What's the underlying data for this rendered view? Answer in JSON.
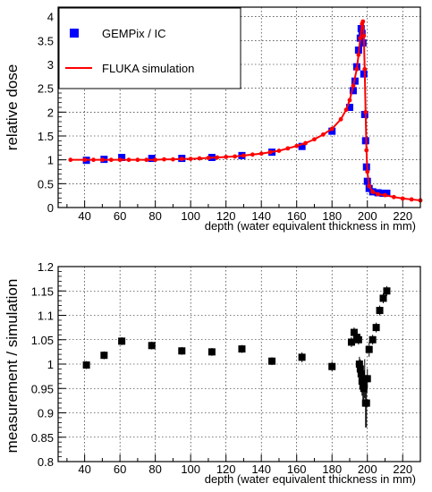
{
  "chart_data": [
    {
      "type": "line",
      "xlabel": "depth (water equivalent thickness in mm)",
      "ylabel": "relative dose",
      "xlim": [
        25,
        230
      ],
      "ylim": [
        0,
        4.2
      ],
      "xticks": [
        40,
        60,
        80,
        100,
        120,
        140,
        160,
        180,
        200,
        220
      ],
      "yticks": [
        0,
        0.5,
        1,
        1.5,
        2,
        2.5,
        3,
        3.5,
        4
      ],
      "ytick_labels": [
        "0",
        "0.5",
        "1",
        "1.5",
        "2",
        "2.5",
        "3",
        "3.5",
        "4"
      ],
      "grid": true,
      "legend": "top-left",
      "series": [
        {
          "name": "GEMPix / IC",
          "marker": "square",
          "color": "#0000ff",
          "x": [
            41,
            51,
            61,
            78,
            95,
            112,
            129,
            146,
            163,
            180,
            190,
            192,
            193,
            194,
            195,
            196,
            196.5,
            197,
            197.5,
            198,
            198.5,
            199,
            199.5,
            200,
            201,
            203,
            206,
            209,
            211
          ],
          "y": [
            0.99,
            1.01,
            1.05,
            1.03,
            1.03,
            1.05,
            1.09,
            1.16,
            1.28,
            1.6,
            2.1,
            2.45,
            2.65,
            2.95,
            3.3,
            3.55,
            3.75,
            3.65,
            3.45,
            2.8,
            1.95,
            1.4,
            0.85,
            0.55,
            0.4,
            0.33,
            0.31,
            0.3,
            0.3
          ]
        },
        {
          "name": "FLUKA simulation",
          "marker": "dot",
          "color": "#ff0000",
          "x": [
            32,
            40,
            45,
            50,
            55,
            60,
            65,
            70,
            75,
            80,
            85,
            90,
            95,
            100,
            105,
            110,
            115,
            120,
            125,
            130,
            135,
            140,
            145,
            150,
            155,
            160,
            165,
            170,
            175,
            180,
            185,
            188,
            190,
            192,
            194,
            195,
            196,
            197,
            197.5,
            198,
            198.5,
            199,
            199.5,
            200,
            201,
            203,
            206,
            210,
            215,
            220,
            225,
            230
          ],
          "y": [
            1.0,
            1.0,
            1.0,
            1.0,
            1.0,
            1.0,
            1.0,
            1.0,
            1.0,
            1.0,
            1.01,
            1.01,
            1.02,
            1.02,
            1.03,
            1.04,
            1.05,
            1.06,
            1.07,
            1.09,
            1.11,
            1.13,
            1.16,
            1.19,
            1.24,
            1.29,
            1.35,
            1.43,
            1.53,
            1.65,
            1.85,
            2.05,
            2.25,
            2.55,
            2.9,
            3.2,
            3.55,
            3.85,
            3.9,
            3.6,
            2.9,
            2.0,
            1.2,
            0.75,
            0.45,
            0.33,
            0.28,
            0.26,
            0.22,
            0.19,
            0.17,
            0.15
          ]
        }
      ]
    },
    {
      "type": "scatter",
      "xlabel": "depth (water equivalent thickness in mm)",
      "ylabel": "measurement / simulation",
      "xlim": [
        25,
        230
      ],
      "ylim": [
        0.8,
        1.2
      ],
      "xticks": [
        40,
        60,
        80,
        100,
        120,
        140,
        160,
        180,
        200,
        220
      ],
      "yticks": [
        0.8,
        0.85,
        0.9,
        0.95,
        1.0,
        1.05,
        1.1,
        1.15,
        1.2
      ],
      "ytick_labels": [
        "0.8",
        "0.85",
        "0.9",
        "0.95",
        "1",
        "1.05",
        "1.1",
        "1.15",
        "1.2"
      ],
      "grid": true,
      "series": [
        {
          "marker": "square",
          "color": "#000000",
          "x": [
            41,
            51,
            61,
            78,
            95,
            112,
            129,
            146,
            163,
            180,
            191,
            192.5,
            194,
            195,
            195.5,
            196,
            196.5,
            197,
            197.5,
            198,
            198.5,
            199,
            199.5,
            200,
            201,
            203,
            205,
            207,
            209,
            211
          ],
          "y": [
            0.998,
            1.018,
            1.047,
            1.038,
            1.027,
            1.025,
            1.031,
            1.006,
            1.014,
            0.995,
            1.045,
            1.065,
            1.055,
            1.05,
            1.0,
            0.99,
            0.98,
            0.965,
            0.955,
            0.95,
            0.97,
            0.92,
            0.92,
            0.97,
            1.03,
            1.05,
            1.075,
            1.11,
            1.135,
            1.15
          ],
          "err": [
            0.008,
            0.008,
            0.008,
            0.008,
            0.008,
            0.008,
            0.008,
            0.008,
            0.01,
            0.01,
            0.01,
            0.01,
            0.01,
            0.01,
            0.015,
            0.02,
            0.025,
            0.03,
            0.03,
            0.035,
            0.04,
            0.05,
            0.05,
            0.02,
            0.015,
            0.01,
            0.01,
            0.01,
            0.01,
            0.01
          ]
        }
      ]
    }
  ]
}
